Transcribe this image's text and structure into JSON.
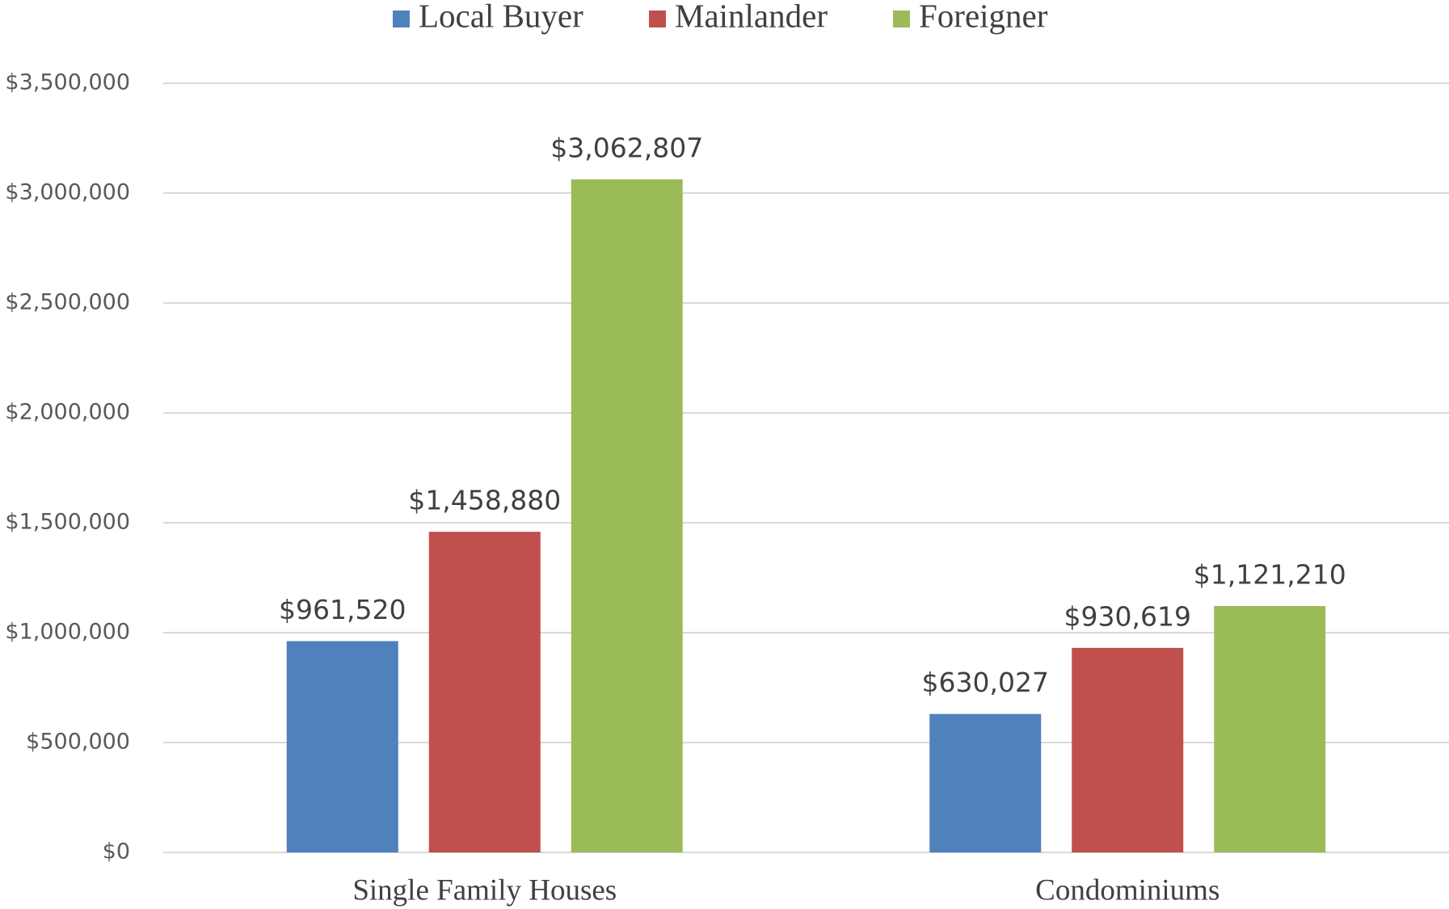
{
  "chart_data": {
    "type": "bar",
    "categories": [
      "Single Family Houses",
      "Condominiums"
    ],
    "series": [
      {
        "name": "Local Buyer",
        "color": "#4f81bd",
        "values": [
          961520,
          630027
        ],
        "value_labels": [
          "$961,520",
          "$630,027"
        ]
      },
      {
        "name": "Mainlander",
        "color": "#c0504d",
        "values": [
          1458880,
          930619
        ],
        "value_labels": [
          "$1,458,880",
          "$930,619"
        ]
      },
      {
        "name": "Foreigner",
        "color": "#9bbb59",
        "values": [
          3062807,
          1121210
        ],
        "value_labels": [
          "$3,062,807",
          "$1,121,210"
        ]
      }
    ],
    "ylim": [
      0,
      3500000
    ],
    "yticks": [
      {
        "value": 0,
        "label": "$0"
      },
      {
        "value": 500000,
        "label": "$500,000"
      },
      {
        "value": 1000000,
        "label": "$1,000,000"
      },
      {
        "value": 1500000,
        "label": "$1,500,000"
      },
      {
        "value": 2000000,
        "label": "$2,000,000"
      },
      {
        "value": 2500000,
        "label": "$2,500,000"
      },
      {
        "value": 3000000,
        "label": "$3,000,000"
      },
      {
        "value": 3500000,
        "label": "$3,500,000"
      }
    ],
    "grid": true,
    "legend": "top"
  }
}
